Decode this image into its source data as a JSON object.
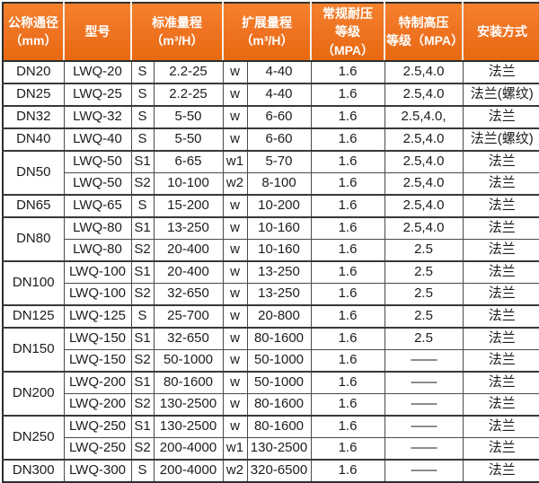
{
  "header": {
    "diameter": "公称通径\n（mm）",
    "model": "型号",
    "std_range": "标准量程\n（m³/H）",
    "ext_range": "扩展量程\n（m³/H）",
    "pressure": "常规耐压\n等级（MPA）",
    "high_pressure": "特制高压\n等级（MPA）",
    "install": "安装方式"
  },
  "accent_color": "#ee7220",
  "grid_color": "#4a4a4a",
  "table": {
    "groups": [
      {
        "dn": "DN20",
        "rows": [
          {
            "model": "LWQ-20",
            "std_grade": "S",
            "std_range": "2.2-25",
            "ext_grade": "w",
            "ext_range": "4-40",
            "pressure": "1.6",
            "high_pressure": "2.5,4.0",
            "install": "法兰"
          }
        ]
      },
      {
        "dn": "DN25",
        "rows": [
          {
            "model": "LWQ-25",
            "std_grade": "S",
            "std_range": "2.2-25",
            "ext_grade": "w",
            "ext_range": "4-40",
            "pressure": "1.6",
            "high_pressure": "2.5,4.0",
            "install": "法兰(螺纹)"
          }
        ]
      },
      {
        "dn": "DN32",
        "rows": [
          {
            "model": "LWQ-32",
            "std_grade": "S",
            "std_range": "5-50",
            "ext_grade": "w",
            "ext_range": "6-60",
            "pressure": "1.6",
            "high_pressure": "2.5,4.0,",
            "install": "法兰"
          }
        ]
      },
      {
        "dn": "DN40",
        "rows": [
          {
            "model": "LWQ-40",
            "std_grade": "S",
            "std_range": "5-50",
            "ext_grade": "w",
            "ext_range": "6-60",
            "pressure": "1.6",
            "high_pressure": "2.5,4.0",
            "install": "法兰(螺纹)"
          }
        ]
      },
      {
        "dn": "DN50",
        "rows": [
          {
            "model": "LWQ-50",
            "std_grade": "S1",
            "std_range": "6-65",
            "ext_grade": "w1",
            "ext_range": "5-70",
            "pressure": "1.6",
            "high_pressure": "2.5,4.0",
            "install": "法兰"
          },
          {
            "model": "LWQ-50",
            "std_grade": "S2",
            "std_range": "10-100",
            "ext_grade": "w2",
            "ext_range": "8-100",
            "pressure": "1.6",
            "high_pressure": "2.5,4.0",
            "install": "法兰"
          }
        ]
      },
      {
        "dn": "DN65",
        "rows": [
          {
            "model": "LWQ-65",
            "std_grade": "S",
            "std_range": "15-200",
            "ext_grade": "w",
            "ext_range": "10-200",
            "pressure": "1.6",
            "high_pressure": "2.5,4.0",
            "install": "法兰"
          }
        ]
      },
      {
        "dn": "DN80",
        "rows": [
          {
            "model": "LWQ-80",
            "std_grade": "S1",
            "std_range": "13-250",
            "ext_grade": "w",
            "ext_range": "10-160",
            "pressure": "1.6",
            "high_pressure": "2.5,4.0",
            "install": "法兰"
          },
          {
            "model": "LWQ-80",
            "std_grade": "S2",
            "std_range": "20-400",
            "ext_grade": "w",
            "ext_range": "10-160",
            "pressure": "1.6",
            "high_pressure": "2.5",
            "install": "法兰"
          }
        ]
      },
      {
        "dn": "DN100",
        "rows": [
          {
            "model": "LWQ-100",
            "std_grade": "S1",
            "std_range": "20-400",
            "ext_grade": "w",
            "ext_range": "13-250",
            "pressure": "1.6",
            "high_pressure": "2.5",
            "install": "法兰"
          },
          {
            "model": "LWQ-100",
            "std_grade": "S2",
            "std_range": "32-650",
            "ext_grade": "w",
            "ext_range": "13-250",
            "pressure": "1.6",
            "high_pressure": "2.5",
            "install": "法兰"
          }
        ]
      },
      {
        "dn": "DN125",
        "rows": [
          {
            "model": "LWQ-125",
            "std_grade": "S",
            "std_range": "25-700",
            "ext_grade": "w",
            "ext_range": "20-800",
            "pressure": "1.6",
            "high_pressure": "2.5",
            "install": "法兰"
          }
        ]
      },
      {
        "dn": "DN150",
        "rows": [
          {
            "model": "LWQ-150",
            "std_grade": "S1",
            "std_range": "32-650",
            "ext_grade": "w",
            "ext_range": "80-1600",
            "pressure": "1.6",
            "high_pressure": "2.5",
            "install": "法兰"
          },
          {
            "model": "LWQ-150",
            "std_grade": "S2",
            "std_range": "50-1000",
            "ext_grade": "w",
            "ext_range": "50-1000",
            "pressure": "1.6",
            "high_pressure": "——",
            "install": "法兰"
          }
        ]
      },
      {
        "dn": "DN200",
        "rows": [
          {
            "model": "LWQ-200",
            "std_grade": "S1",
            "std_range": "80-1600",
            "ext_grade": "w",
            "ext_range": "50-1000",
            "pressure": "1.6",
            "high_pressure": "——",
            "install": "法兰"
          },
          {
            "model": "LWQ-200",
            "std_grade": "S2",
            "std_range": "130-2500",
            "ext_grade": "w",
            "ext_range": "80-1600",
            "pressure": "1.6",
            "high_pressure": "——",
            "install": "法兰"
          }
        ]
      },
      {
        "dn": "DN250",
        "rows": [
          {
            "model": "LWQ-250",
            "std_grade": "S1",
            "std_range": "130-2500",
            "ext_grade": "w",
            "ext_range": "80-1600",
            "pressure": "1.6",
            "high_pressure": "——",
            "install": "法兰"
          },
          {
            "model": "LWQ-250",
            "std_grade": "S2",
            "std_range": "200-4000",
            "ext_grade": "w1",
            "ext_range": "130-2500",
            "pressure": "1.6",
            "high_pressure": "——",
            "install": "法兰"
          }
        ]
      },
      {
        "dn": "DN300",
        "rows": [
          {
            "model": "LWQ-300",
            "std_grade": "S",
            "std_range": "200-4000",
            "ext_grade": "w2",
            "ext_range": "320-6500",
            "pressure": "1.6",
            "high_pressure": "——",
            "install": "法兰"
          }
        ]
      }
    ]
  }
}
